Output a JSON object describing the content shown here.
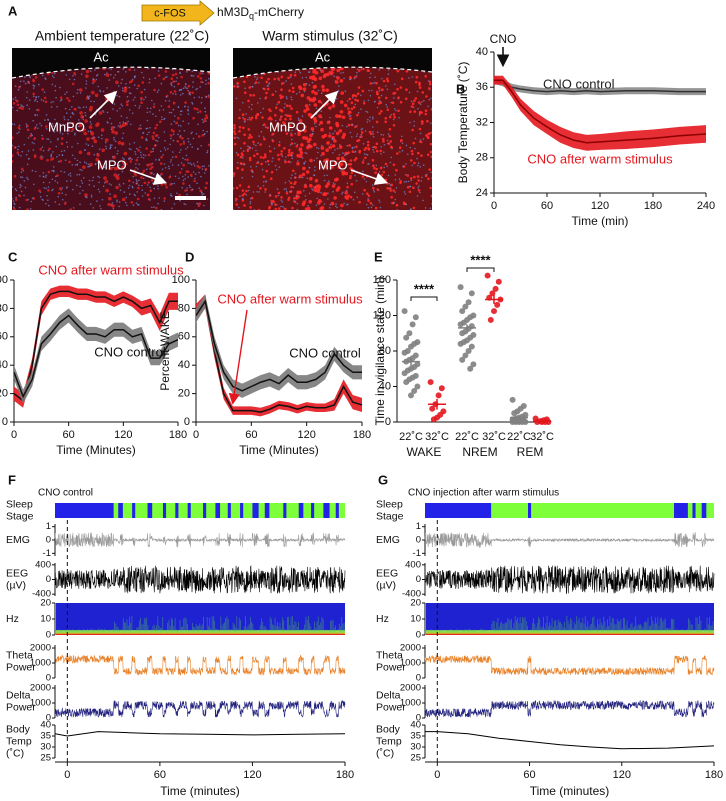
{
  "panel_a": {
    "label": "A",
    "construct": {
      "promoter": "c-FOS",
      "receptor": "hM3D",
      "subscript": "q",
      "reporter": "-mCherry"
    },
    "images": [
      {
        "title": "Ambient temperature (22˚C)",
        "landmarks": [
          "Ac",
          "MnPO",
          "MPO"
        ]
      },
      {
        "title": "Warm stimulus (32˚C)",
        "landmarks": [
          "Ac",
          "MnPO",
          "MPO"
        ]
      }
    ]
  },
  "chart_data": [
    {
      "panel": "B",
      "type": "line",
      "x_label": "Time (min)",
      "y_label": "Body Temperature (˚C)",
      "annotation": "CNO",
      "x": [
        0,
        10,
        20,
        30,
        45,
        60,
        75,
        90,
        105,
        120,
        150,
        180,
        210,
        240
      ],
      "series": [
        {
          "name": "CNO control",
          "color": "#8a8a8a",
          "line_color": "#333333",
          "label_color": "#222222",
          "values": [
            36.8,
            36.5,
            36.0,
            35.8,
            35.6,
            35.5,
            35.6,
            35.5,
            35.6,
            35.5,
            35.6,
            35.6,
            35.5,
            35.5
          ],
          "errors": [
            0.4,
            0.4,
            0.4,
            0.4,
            0.4,
            0.4,
            0.4,
            0.4,
            0.4,
            0.4,
            0.4,
            0.4,
            0.4,
            0.4
          ]
        },
        {
          "name": "CNO after warm stimulus",
          "color": "#e3171e",
          "line_color": "#8b0000",
          "label_color": "#e3171e",
          "values": [
            36.8,
            36.8,
            35.5,
            34.0,
            32.5,
            31.5,
            30.6,
            30.0,
            29.7,
            29.8,
            30.0,
            30.2,
            30.5,
            30.7
          ],
          "errors": [
            0.5,
            0.5,
            0.6,
            0.7,
            0.8,
            0.8,
            0.9,
            0.9,
            0.9,
            0.9,
            1.0,
            1.0,
            1.0,
            1.0
          ]
        }
      ],
      "xlim": [
        0,
        240
      ],
      "xticks": [
        0,
        60,
        120,
        180,
        240
      ],
      "ylim": [
        24,
        40
      ],
      "yticks": [
        24,
        28,
        32,
        36,
        40
      ]
    },
    {
      "panel": "C",
      "type": "line",
      "x_label": "Time (Minutes)",
      "y_label": "Percent NREM",
      "x": [
        0,
        10,
        20,
        30,
        40,
        50,
        60,
        70,
        80,
        90,
        100,
        110,
        120,
        130,
        140,
        150,
        160,
        170,
        180
      ],
      "series": [
        {
          "name": "CNO after warm stimulus",
          "color": "#e3171e",
          "line_color": "#111111",
          "label_color": "#e3171e",
          "values": [
            20,
            15,
            40,
            80,
            90,
            92,
            92,
            90,
            90,
            88,
            88,
            85,
            88,
            85,
            80,
            82,
            70,
            85,
            85
          ],
          "errors": [
            5,
            5,
            5,
            5,
            4,
            4,
            4,
            4,
            4,
            4,
            4,
            4,
            4,
            4,
            5,
            5,
            6,
            6,
            6
          ]
        },
        {
          "name": "CNO control",
          "color": "#7a7a7a",
          "line_color": "#111111",
          "label_color": "#111111",
          "values": [
            35,
            18,
            30,
            55,
            62,
            70,
            75,
            68,
            62,
            62,
            60,
            65,
            65,
            60,
            62,
            45,
            45,
            55,
            58
          ],
          "errors": [
            5,
            5,
            5,
            5,
            5,
            5,
            5,
            5,
            5,
            5,
            5,
            5,
            5,
            5,
            5,
            5,
            5,
            5,
            5
          ]
        }
      ],
      "xlim": [
        0,
        180
      ],
      "xticks": [
        0,
        60,
        120,
        180
      ],
      "ylim": [
        0,
        100
      ],
      "yticks": [
        0,
        20,
        40,
        60,
        80,
        100
      ]
    },
    {
      "panel": "D",
      "type": "line",
      "x_label": "Time (Minutes)",
      "y_label": "Percent WAKE",
      "x": [
        0,
        10,
        20,
        30,
        40,
        50,
        60,
        70,
        80,
        90,
        100,
        110,
        120,
        130,
        140,
        150,
        160,
        170,
        180
      ],
      "series": [
        {
          "name": "CNO after warm stimulus",
          "color": "#e3171e",
          "line_color": "#111111",
          "label_color": "#e3171e",
          "values": [
            78,
            85,
            50,
            20,
            8,
            8,
            8,
            7,
            9,
            12,
            11,
            9,
            11,
            10,
            10,
            12,
            25,
            14,
            12
          ],
          "errors": [
            5,
            5,
            5,
            4,
            3,
            3,
            3,
            3,
            3,
            3,
            3,
            3,
            3,
            3,
            3,
            4,
            5,
            5,
            5
          ]
        },
        {
          "name": "CNO control",
          "color": "#7a7a7a",
          "line_color": "#111111",
          "label_color": "#111111",
          "values": [
            75,
            85,
            55,
            35,
            25,
            22,
            25,
            28,
            30,
            27,
            33,
            28,
            28,
            30,
            35,
            48,
            40,
            35,
            35
          ],
          "errors": [
            5,
            5,
            5,
            5,
            5,
            5,
            5,
            5,
            5,
            5,
            5,
            5,
            5,
            5,
            5,
            5,
            5,
            5,
            5
          ]
        }
      ],
      "xlim": [
        0,
        180
      ],
      "xticks": [
        0,
        60,
        120,
        180
      ],
      "ylim": [
        0,
        100
      ],
      "yticks": [
        0,
        20,
        40,
        60,
        80,
        100
      ]
    },
    {
      "panel": "E",
      "type": "dot",
      "y_label": "Time in vigilance state (min)",
      "groups": [
        "WAKE",
        "NREM",
        "REM"
      ],
      "categories": [
        "22˚C",
        "32˚C",
        "22˚C",
        "32˚C",
        "22˚C",
        "32˚C"
      ],
      "colors": [
        "#7f7f7f",
        "#e3171e"
      ],
      "points": [
        [
          125,
          118,
          110,
          100,
          95,
          90,
          88,
          85,
          80,
          78,
          75,
          72,
          70,
          68,
          65,
          62,
          60,
          58,
          55,
          52,
          50,
          48,
          45,
          40,
          35,
          30
        ],
        [
          45,
          38,
          30,
          20,
          15,
          12,
          8,
          5,
          3
        ],
        [
          152,
          145,
          135,
          130,
          125,
          120,
          118,
          115,
          112,
          110,
          108,
          105,
          102,
          100,
          98,
          95,
          92,
          90,
          88,
          85,
          80,
          75,
          70,
          65,
          60
        ],
        [
          165,
          158,
          150,
          145,
          140,
          138,
          132,
          125,
          115
        ],
        [
          25,
          18,
          15,
          12,
          10,
          8,
          6,
          5,
          4,
          3,
          2,
          2,
          1,
          1,
          0,
          0,
          0,
          0,
          0
        ],
        [
          4,
          3,
          2,
          1,
          0,
          0,
          0,
          0
        ]
      ],
      "means": [
        68,
        20,
        106,
        138,
        5,
        1
      ],
      "errors": [
        5,
        6,
        4,
        5,
        1.5,
        0.6
      ],
      "significance": [
        {
          "label": "****",
          "between": [
            0,
            1
          ]
        },
        {
          "label": "****",
          "between": [
            2,
            3
          ]
        }
      ],
      "ylim": [
        0,
        160
      ],
      "yticks": [
        0,
        40,
        80,
        120,
        160
      ]
    },
    {
      "panel": "F",
      "type": "recording",
      "title": "CNO control",
      "x_label": "Time (minutes)",
      "xlim": [
        -8,
        180
      ],
      "xticks": [
        0,
        60,
        120,
        180
      ],
      "rows": [
        {
          "label_lines": [
            "Sleep",
            "Stage"
          ],
          "kind": "stage",
          "background_color": "#7dff3a",
          "segment_color": "#2222e8",
          "segments": [
            [
              -8,
              30
            ],
            [
              33,
              36
            ],
            [
              42,
              44
            ],
            [
              52,
              55
            ],
            [
              62,
              64
            ],
            [
              70,
              72
            ],
            [
              78,
              80
            ],
            [
              88,
              90
            ],
            [
              96,
              99
            ],
            [
              104,
              106
            ],
            [
              112,
              114
            ],
            [
              120,
              124
            ],
            [
              128,
              131
            ],
            [
              140,
              142
            ],
            [
              150,
              153
            ],
            [
              158,
              160
            ],
            [
              166,
              170
            ],
            [
              174,
              176
            ]
          ]
        },
        {
          "label_lines": [
            "EMG"
          ],
          "kind": "emg",
          "color": "#9a9a9a",
          "ylim": [
            -1.2,
            1.2
          ],
          "yticks": [
            -1,
            0,
            1
          ]
        },
        {
          "label_lines": [
            "EEG",
            "(µV)"
          ],
          "kind": "eeg",
          "color": "#000000",
          "ylim": [
            -450,
            450
          ],
          "yticks": [
            -400,
            0,
            400
          ]
        },
        {
          "label_lines": [
            "Hz"
          ],
          "kind": "spectrogram",
          "color": "#1f22d0",
          "ylim": [
            0,
            20
          ],
          "yticks": [
            0,
            10,
            20
          ]
        },
        {
          "label_lines": [
            "Theta",
            "Power"
          ],
          "kind": "theta",
          "color": "#e8822a",
          "ylim": [
            0,
            2200
          ],
          "yticks": [
            0,
            1000,
            2000
          ]
        },
        {
          "label_lines": [
            "Delta",
            "Power"
          ],
          "kind": "delta",
          "color": "#23237e",
          "ylim": [
            0,
            2200
          ],
          "yticks": [
            0,
            1000,
            2000
          ]
        },
        {
          "label_lines": [
            "Body",
            "Temp",
            "(˚C)"
          ],
          "kind": "line",
          "color": "#000000",
          "x": [
            -8,
            0,
            20,
            40,
            60,
            90,
            120,
            150,
            180
          ],
          "values": [
            36,
            35,
            37,
            36.5,
            36,
            35.8,
            35.5,
            35.8,
            36
          ],
          "ylim": [
            25,
            40
          ],
          "yticks": [
            25,
            30,
            35,
            40
          ]
        }
      ]
    },
    {
      "panel": "G",
      "type": "recording",
      "title": "CNO injection after warm stimulus",
      "x_label": "Time (minutes)",
      "xlim": [
        -8,
        180
      ],
      "xticks": [
        0,
        60,
        120,
        180
      ],
      "rows": [
        {
          "label_lines": [
            "Sleep",
            "Stage"
          ],
          "kind": "stage",
          "background_color": "#7dff3a",
          "segment_color": "#2222e8",
          "segments": [
            [
              -8,
              35
            ],
            [
              59,
              61
            ],
            [
              154,
              163
            ],
            [
              166,
              168
            ],
            [
              172,
              175
            ]
          ]
        },
        {
          "label_lines": [
            "EMG"
          ],
          "kind": "emg",
          "color": "#9a9a9a",
          "ylim": [
            -1.2,
            1.2
          ],
          "yticks": [
            -1,
            0,
            1
          ]
        },
        {
          "label_lines": [
            "EEG",
            "(µV)"
          ],
          "kind": "eeg",
          "color": "#000000",
          "ylim": [
            -450,
            450
          ],
          "yticks": [
            -400,
            0,
            400
          ]
        },
        {
          "label_lines": [
            "Hz"
          ],
          "kind": "spectrogram",
          "color": "#1f22d0",
          "ylim": [
            0,
            20
          ],
          "yticks": [
            0,
            10,
            20
          ]
        },
        {
          "label_lines": [
            "Theta",
            "Power"
          ],
          "kind": "theta",
          "color": "#e8822a",
          "ylim": [
            0,
            2200
          ],
          "yticks": [
            0,
            1000,
            2000
          ]
        },
        {
          "label_lines": [
            "Delta",
            "Power"
          ],
          "kind": "delta",
          "color": "#23237e",
          "ylim": [
            0,
            2200
          ],
          "yticks": [
            0,
            1000,
            2000
          ]
        },
        {
          "label_lines": [
            "Body",
            "Temp",
            "(˚C)"
          ],
          "kind": "line",
          "color": "#000000",
          "x": [
            -8,
            0,
            20,
            40,
            60,
            80,
            100,
            120,
            150,
            180
          ],
          "values": [
            37,
            37,
            36,
            34,
            32.5,
            31,
            30,
            29.2,
            29.5,
            30.5
          ],
          "ylim": [
            25,
            40
          ],
          "yticks": [
            25,
            30,
            35,
            40
          ]
        }
      ]
    }
  ]
}
